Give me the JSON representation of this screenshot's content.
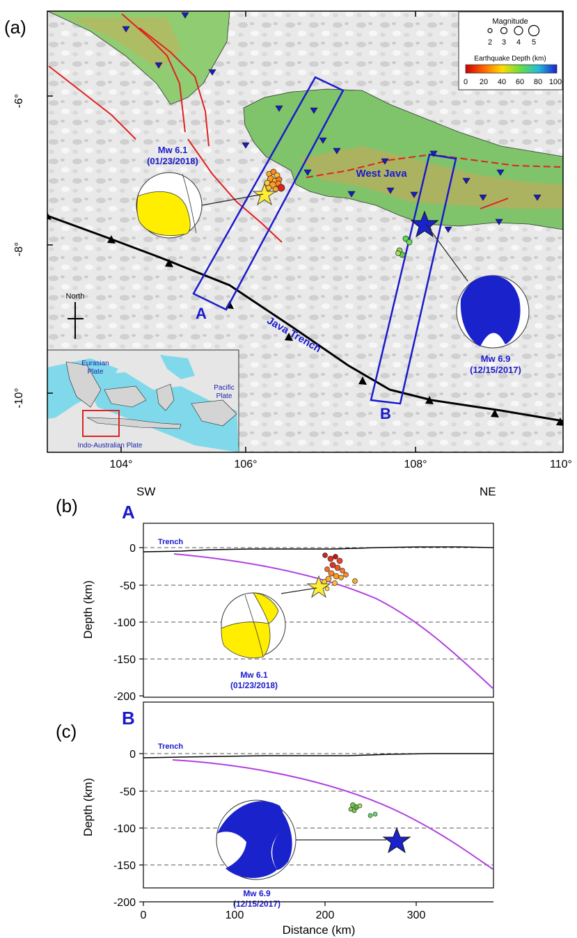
{
  "panels": {
    "a": "(a)",
    "b": "(b)",
    "c": "(c)"
  },
  "map": {
    "lat_ticks": [
      "-6°",
      "-8°",
      "-10°"
    ],
    "lon_ticks": [
      "104°",
      "106°",
      "108°",
      "110°"
    ],
    "north_label": "North",
    "profile_a": "A",
    "profile_b": "B",
    "region_label": "West Java",
    "trench_label": "Java Trench",
    "eq1": {
      "mag": "Mw 6.1",
      "date": "(01/23/2018)"
    },
    "eq2": {
      "mag": "Mw 6.9",
      "date": "(12/15/2017)"
    },
    "legend": {
      "magnitude_title": "Magnitude",
      "magnitude_values": [
        "2",
        "3",
        "4",
        "5"
      ],
      "depth_title": "Earthquake Depth (km)",
      "depth_ticks": [
        "0",
        "20",
        "40",
        "60",
        "80",
        "100"
      ]
    },
    "inset": {
      "eurasian": [
        "Eurasian",
        "Plate"
      ],
      "pacific": [
        "Pacific",
        "Plate"
      ],
      "indo": "Indo-Australian Plate"
    },
    "colors": {
      "land": "#7fc46a",
      "profile_box": "#1a1acc",
      "fault": "#e02020",
      "trench": "#000000",
      "station": "#1a1acc"
    }
  },
  "sections": {
    "sw": "SW",
    "ne": "NE",
    "ylabel": "Depth (km)",
    "xlabel": "Distance (km)",
    "trench_label": "Trench",
    "y_ticks": [
      "0",
      "-50",
      "-100",
      "-150",
      "-200"
    ],
    "x_ticks": [
      "0",
      "100",
      "200",
      "300"
    ],
    "a": {
      "label": "A",
      "mag": "Mw 6.1",
      "date": "(01/23/2018)"
    },
    "b": {
      "label": "B",
      "mag": "Mw 6.9",
      "date": "(12/15/2017)"
    }
  }
}
